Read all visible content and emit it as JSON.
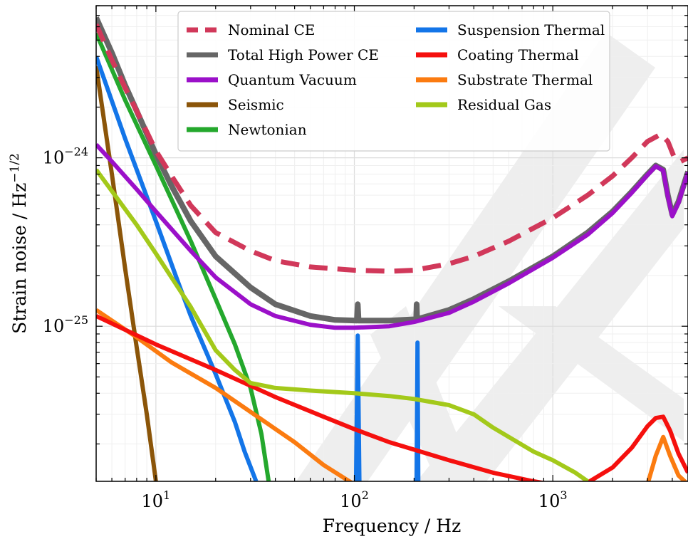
{
  "chart_data": {
    "type": "line",
    "xlabel": "Frequency / Hz",
    "ylabel": "Strain noise / Hz",
    "ylabel_exponent": "−1/2",
    "x_scale": "log",
    "y_scale": "log",
    "xlim": [
      5,
      4800
    ],
    "ylim": [
      1.2e-26,
      8e-24
    ],
    "x_ticks": [
      {
        "value": 10,
        "base": "10",
        "exp": "1"
      },
      {
        "value": 100,
        "base": "10",
        "exp": "2"
      },
      {
        "value": 1000,
        "base": "10",
        "exp": "3"
      }
    ],
    "y_ticks": [
      {
        "value": 1e-25,
        "base": "10",
        "exp": "−25"
      },
      {
        "value": 1e-24,
        "base": "10",
        "exp": "−24"
      }
    ],
    "grid": true,
    "legend_position": "top-center",
    "legend_columns": 2,
    "series": [
      {
        "name": "Nominal CE",
        "color": "#d1385a",
        "dash": true,
        "width": 7,
        "points": [
          [
            5,
            6.2e-24
          ],
          [
            6,
            3.8e-24
          ],
          [
            7,
            2.6e-24
          ],
          [
            8,
            1.9e-24
          ],
          [
            10,
            1.1e-24
          ],
          [
            12,
            7.8e-25
          ],
          [
            15,
            5.2e-25
          ],
          [
            20,
            3.6e-25
          ],
          [
            30,
            2.8e-25
          ],
          [
            40,
            2.45e-25
          ],
          [
            60,
            2.25e-25
          ],
          [
            100,
            2.15e-25
          ],
          [
            150,
            2.12e-25
          ],
          [
            200,
            2.15e-25
          ],
          [
            300,
            2.35e-25
          ],
          [
            400,
            2.6e-25
          ],
          [
            600,
            3.2e-25
          ],
          [
            1000,
            4.4e-25
          ],
          [
            1500,
            6e-25
          ],
          [
            2000,
            7.8e-25
          ],
          [
            2500,
            1e-24
          ],
          [
            3000,
            1.25e-24
          ],
          [
            3500,
            1.38e-24
          ],
          [
            3800,
            1.25e-24
          ],
          [
            4100,
            1e-24
          ],
          [
            4400,
            9.5e-25
          ],
          [
            4800,
            1e-24
          ]
        ]
      },
      {
        "name": "Total High Power CE",
        "color": "#666666",
        "dash": false,
        "width": 8,
        "points": [
          [
            5,
            6.8e-24
          ],
          [
            6,
            4.2e-24
          ],
          [
            7,
            2.7e-24
          ],
          [
            8,
            1.9e-24
          ],
          [
            10,
            1.05e-24
          ],
          [
            12,
            6.8e-25
          ],
          [
            15,
            4.2e-25
          ],
          [
            20,
            2.6e-25
          ],
          [
            30,
            1.7e-25
          ],
          [
            40,
            1.35e-25
          ],
          [
            60,
            1.15e-25
          ],
          [
            80,
            1.09e-25
          ],
          [
            103,
            1.08e-25
          ],
          [
            104,
            1.35e-25
          ],
          [
            105,
            1.08e-25
          ],
          [
            150,
            1.08e-25
          ],
          [
            205,
            1.1e-25
          ],
          [
            206,
            1.35e-25
          ],
          [
            207,
            1.1e-25
          ],
          [
            300,
            1.25e-25
          ],
          [
            400,
            1.45e-25
          ],
          [
            600,
            1.85e-25
          ],
          [
            1000,
            2.6e-25
          ],
          [
            1500,
            3.6e-25
          ],
          [
            2000,
            4.8e-25
          ],
          [
            2500,
            6.3e-25
          ],
          [
            3000,
            8e-25
          ],
          [
            3300,
            9e-25
          ],
          [
            3600,
            8.5e-25
          ],
          [
            3800,
            6e-25
          ],
          [
            4000,
            4.6e-25
          ],
          [
            4300,
            5.5e-25
          ],
          [
            4800,
            8.3e-25
          ]
        ]
      },
      {
        "name": "Quantum Vacuum",
        "color": "#9b10c9",
        "dash": false,
        "width": 6,
        "points": [
          [
            5,
            1.2e-24
          ],
          [
            6,
            9.5e-25
          ],
          [
            8,
            6.5e-25
          ],
          [
            10,
            4.8e-25
          ],
          [
            15,
            2.8e-25
          ],
          [
            20,
            1.95e-25
          ],
          [
            30,
            1.35e-25
          ],
          [
            40,
            1.15e-25
          ],
          [
            60,
            1.02e-25
          ],
          [
            80,
            9.8e-26
          ],
          [
            100,
            9.8e-26
          ],
          [
            150,
            1e-25
          ],
          [
            200,
            1.06e-25
          ],
          [
            300,
            1.2e-25
          ],
          [
            400,
            1.4e-25
          ],
          [
            600,
            1.8e-25
          ],
          [
            1000,
            2.55e-25
          ],
          [
            1500,
            3.5e-25
          ],
          [
            2000,
            4.7e-25
          ],
          [
            2500,
            6.2e-25
          ],
          [
            3000,
            7.9e-25
          ],
          [
            3300,
            8.9e-25
          ],
          [
            3600,
            8.4e-25
          ],
          [
            3800,
            5.9e-25
          ],
          [
            4000,
            4.5e-25
          ],
          [
            4300,
            5.4e-25
          ],
          [
            4800,
            8.2e-25
          ]
        ]
      },
      {
        "name": "Seismic",
        "color": "#8b5509",
        "dash": false,
        "width": 6,
        "points": [
          [
            5,
            3.5e-24
          ],
          [
            6,
            8e-25
          ],
          [
            7,
            2.2e-25
          ],
          [
            8,
            7.5e-26
          ],
          [
            9,
            3e-26
          ],
          [
            10,
            1.2e-26
          ]
        ]
      },
      {
        "name": "Newtonian",
        "color": "#24a82d",
        "dash": false,
        "width": 6,
        "points": [
          [
            5,
            5.5e-24
          ],
          [
            7,
            2.2e-24
          ],
          [
            10,
            9e-25
          ],
          [
            15,
            3.2e-25
          ],
          [
            20,
            1.45e-25
          ],
          [
            25,
            7.8e-26
          ],
          [
            30,
            4.3e-26
          ],
          [
            34,
            2.3e-26
          ],
          [
            37,
            1.2e-26
          ]
        ]
      },
      {
        "name": "Suspension Thermal",
        "color": "#1375e8",
        "dash": false,
        "width": 6,
        "points": [
          [
            5,
            4e-24
          ],
          [
            7,
            1.3e-24
          ],
          [
            10,
            4.2e-25
          ],
          [
            13,
            1.8e-25
          ],
          [
            15,
            1.15e-25
          ],
          [
            20,
            5.2e-26
          ],
          [
            25,
            2.7e-26
          ],
          [
            28,
            1.8e-26
          ],
          [
            32,
            1.2e-26
          ]
        ]
      },
      {
        "name": "Suspension Thermal peak 1",
        "color": "#1375e8",
        "dash": false,
        "width": 6,
        "hidden_legend": true,
        "points": [
          [
            102,
            1.2e-26
          ],
          [
            104,
            8.8e-26
          ],
          [
            106,
            1.2e-26
          ]
        ]
      },
      {
        "name": "Suspension Thermal peak 2",
        "color": "#1375e8",
        "dash": false,
        "width": 6,
        "hidden_legend": true,
        "points": [
          [
            206,
            1.2e-26
          ],
          [
            208,
            8e-26
          ],
          [
            210,
            1.2e-26
          ]
        ]
      },
      {
        "name": "Coating Thermal",
        "color": "#f5100e",
        "dash": false,
        "width": 6,
        "points": [
          [
            5,
            1.15e-25
          ],
          [
            10,
            7.8e-26
          ],
          [
            20,
            5.5e-26
          ],
          [
            40,
            3.8e-26
          ],
          [
            70,
            2.9e-26
          ],
          [
            100,
            2.45e-26
          ],
          [
            150,
            2.05e-26
          ],
          [
            200,
            1.85e-26
          ],
          [
            300,
            1.6e-26
          ],
          [
            500,
            1.35e-26
          ],
          [
            800,
            1.2e-26
          ],
          [
            1000,
            1.15e-26
          ],
          [
            1500,
            1.18e-26
          ],
          [
            2000,
            1.45e-26
          ],
          [
            2500,
            1.9e-26
          ],
          [
            3000,
            2.55e-26
          ],
          [
            3300,
            2.85e-26
          ],
          [
            3600,
            2.9e-26
          ],
          [
            3900,
            2.4e-26
          ],
          [
            4300,
            1.75e-26
          ],
          [
            4800,
            1.35e-26
          ]
        ]
      },
      {
        "name": "Substrate Thermal",
        "color": "#fb7b10",
        "dash": false,
        "width": 6,
        "points": [
          [
            5,
            1.25e-25
          ],
          [
            8,
            8.6e-26
          ],
          [
            12,
            6.1e-26
          ],
          [
            20,
            4.3e-26
          ],
          [
            30,
            3.1e-26
          ],
          [
            50,
            2.05e-26
          ],
          [
            70,
            1.5e-26
          ],
          [
            100,
            1.15e-26
          ],
          [
            3000,
            1.15e-26
          ],
          [
            3300,
            1.7e-26
          ],
          [
            3600,
            2.2e-26
          ],
          [
            3900,
            1.7e-26
          ],
          [
            4300,
            1.3e-26
          ],
          [
            4800,
            1.15e-26
          ]
        ]
      },
      {
        "name": "Residual Gas",
        "color": "#a3c91a",
        "dash": false,
        "width": 6,
        "points": [
          [
            5,
            8.5e-25
          ],
          [
            8,
            4e-25
          ],
          [
            10,
            2.7e-25
          ],
          [
            15,
            1.3e-25
          ],
          [
            20,
            7.2e-26
          ],
          [
            25,
            5.5e-26
          ],
          [
            30,
            4.6e-26
          ],
          [
            40,
            4.3e-26
          ],
          [
            60,
            4.15e-26
          ],
          [
            100,
            4e-26
          ],
          [
            150,
            3.85e-26
          ],
          [
            200,
            3.7e-26
          ],
          [
            300,
            3.4e-26
          ],
          [
            400,
            3e-26
          ],
          [
            500,
            2.5e-26
          ],
          [
            600,
            2.2e-26
          ],
          [
            800,
            1.8e-26
          ],
          [
            1000,
            1.6e-26
          ],
          [
            1300,
            1.35e-26
          ],
          [
            1500,
            1.2e-26
          ]
        ]
      }
    ],
    "legend": [
      {
        "label": "Nominal CE",
        "color": "#d1385a",
        "dash": true,
        "col": 0,
        "row": 0
      },
      {
        "label": "Total High Power CE",
        "color": "#666666",
        "dash": false,
        "col": 0,
        "row": 1
      },
      {
        "label": "Quantum Vacuum",
        "color": "#9b10c9",
        "dash": false,
        "col": 0,
        "row": 2
      },
      {
        "label": "Seismic",
        "color": "#8b5509",
        "dash": false,
        "col": 0,
        "row": 3
      },
      {
        "label": "Newtonian",
        "color": "#24a82d",
        "dash": false,
        "col": 0,
        "row": 4
      },
      {
        "label": "Suspension Thermal",
        "color": "#1375e8",
        "dash": false,
        "col": 1,
        "row": 0
      },
      {
        "label": "Coating Thermal",
        "color": "#f5100e",
        "dash": false,
        "col": 1,
        "row": 1
      },
      {
        "label": "Substrate Thermal",
        "color": "#fb7b10",
        "dash": false,
        "col": 1,
        "row": 2
      },
      {
        "label": "Residual Gas",
        "color": "#a3c91a",
        "dash": false,
        "col": 1,
        "row": 3
      }
    ]
  }
}
